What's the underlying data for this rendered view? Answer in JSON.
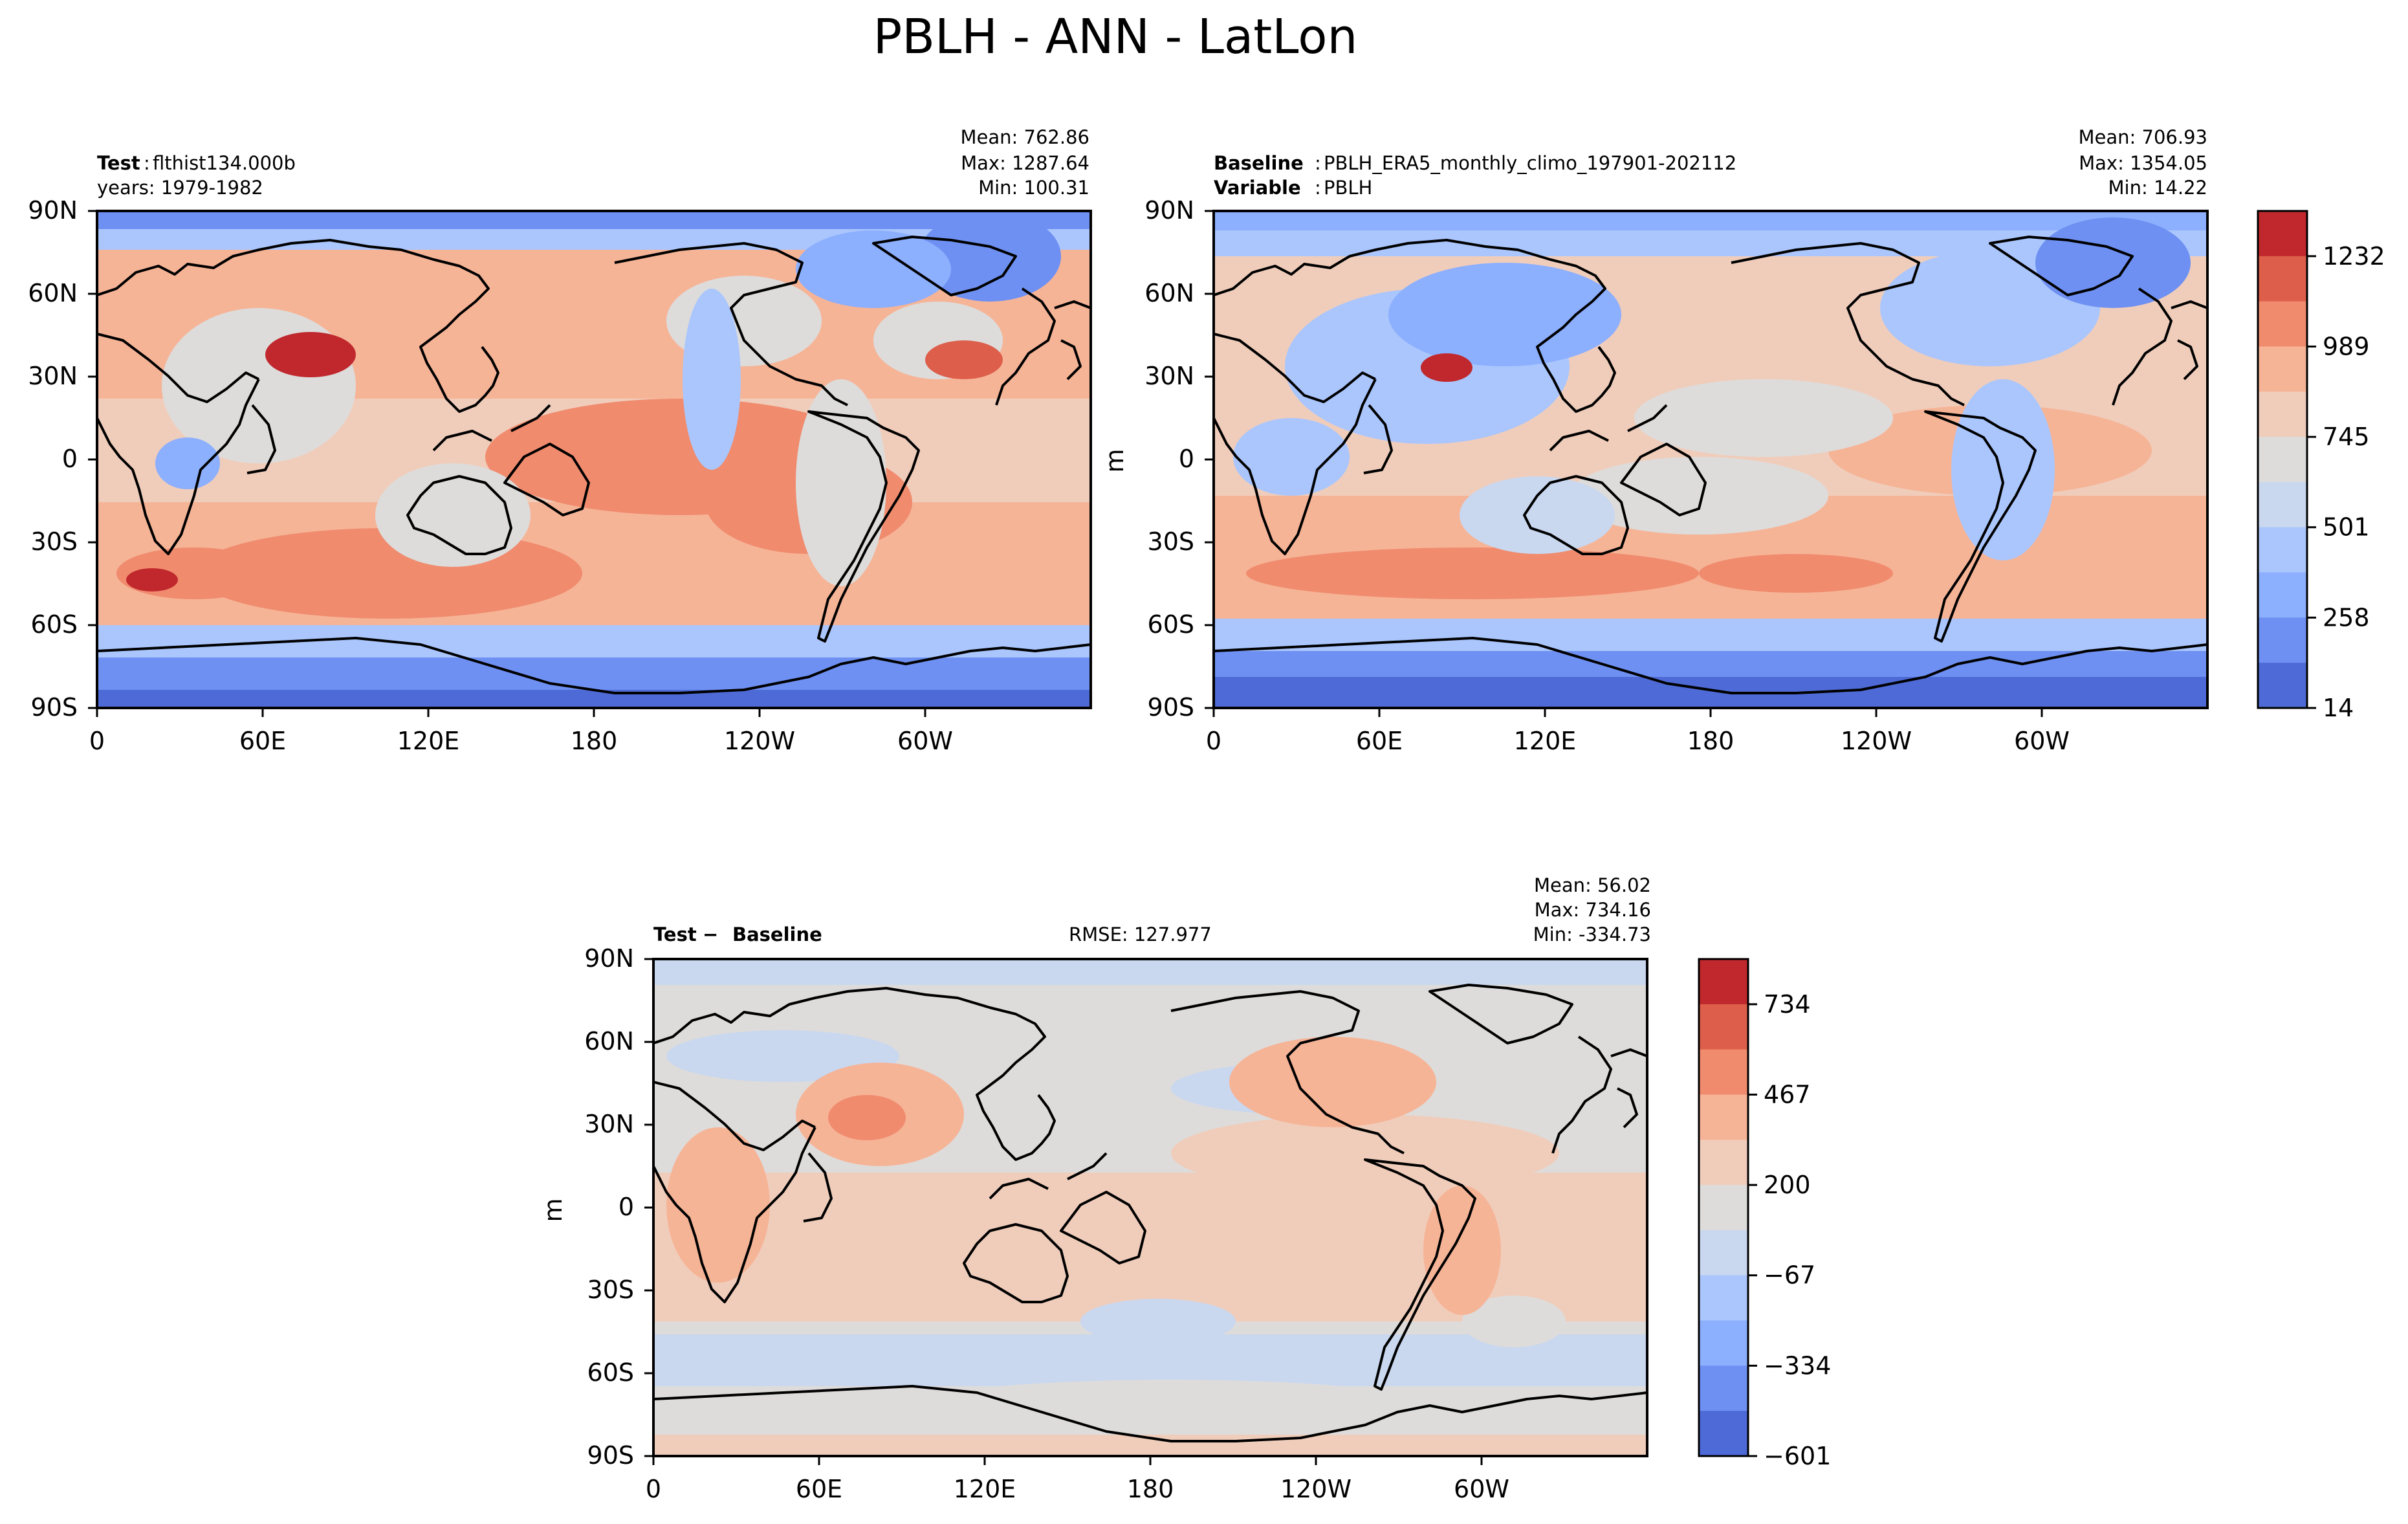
{
  "suptitle": "PBLH - ANN - LatLon",
  "panels": {
    "test": {
      "left_bold": "Test",
      "left_line1": "flthist134.000b",
      "left_line2": "years: 1979-1982",
      "mean": "Mean: 762.86",
      "max": "Max: 1287.64",
      "min": "Min: 100.31"
    },
    "baseline": {
      "left_bold": "Baseline",
      "left_line1": "PBLH_ERA5_monthly_climo_197901-202112",
      "left_bold2": "Variable",
      "left_line2": "PBLH",
      "mean": "Mean: 706.93",
      "max": "Max: 1354.05",
      "min": "Min: 14.22",
      "ylabel": "m"
    },
    "diff": {
      "left_bold": "Test",
      "left_bold_minus": "−",
      "left_bold2": "Baseline",
      "rmse": "RMSE: 127.977",
      "mean": "Mean: 56.02",
      "max": "Max: 734.16",
      "min": "Min: -334.73",
      "ylabel": "m"
    }
  },
  "axes": {
    "lat_ticks": [
      "90N",
      "60N",
      "30N",
      "0",
      "30S",
      "60S",
      "90S"
    ],
    "lon_ticks": [
      "0",
      "60E",
      "120E",
      "180",
      "120W",
      "60W"
    ]
  },
  "colorbars": {
    "main": {
      "ticks": [
        "1232",
        "989",
        "745",
        "501",
        "258",
        "14"
      ],
      "colors": [
        "#c0282d",
        "#dd5f4b",
        "#f08b6e",
        "#f6b497",
        "#f0cdbb",
        "#dddcdb",
        "#c9d7ef",
        "#aac6fd",
        "#8caffe",
        "#6e90f2",
        "#4e6ad6"
      ]
    },
    "diff": {
      "ticks": [
        "734",
        "467",
        "200",
        "−67",
        "−334",
        "−601"
      ],
      "colors": [
        "#c0282d",
        "#dd5f4b",
        "#f08b6e",
        "#f6b497",
        "#f0cdbb",
        "#dddcdb",
        "#c9d7ef",
        "#aac6fd",
        "#8caffe",
        "#6e90f2",
        "#4e6ad6"
      ]
    }
  },
  "chart_data": [
    {
      "type": "heatmap",
      "title": "Test",
      "ylabel": "",
      "x": [
        "0",
        "60E",
        "120E",
        "180",
        "120W",
        "60W"
      ],
      "y": [
        "90N",
        "60N",
        "30N",
        "0",
        "30S",
        "60S",
        "90S"
      ],
      "levels": [
        14,
        258,
        501,
        745,
        989,
        1232
      ],
      "stats": {
        "mean": 762.86,
        "max": 1287.64,
        "min": 100.31
      }
    },
    {
      "type": "heatmap",
      "title": "Baseline",
      "ylabel": "m",
      "x": [
        "0",
        "60E",
        "120E",
        "180",
        "120W",
        "60W"
      ],
      "y": [
        "90N",
        "60N",
        "30N",
        "0",
        "30S",
        "60S",
        "90S"
      ],
      "levels": [
        14,
        258,
        501,
        745,
        989,
        1232
      ],
      "stats": {
        "mean": 706.93,
        "max": 1354.05,
        "min": 14.22
      }
    },
    {
      "type": "heatmap",
      "title": "Test − Baseline",
      "ylabel": "m",
      "x": [
        "0",
        "60E",
        "120E",
        "180",
        "120W",
        "60W"
      ],
      "y": [
        "90N",
        "60N",
        "30N",
        "0",
        "30S",
        "60S",
        "90S"
      ],
      "levels": [
        -601,
        -334,
        -67,
        200,
        467,
        734
      ],
      "stats": {
        "mean": 56.02,
        "max": 734.16,
        "min": -334.73,
        "rmse": 127.977
      }
    }
  ]
}
